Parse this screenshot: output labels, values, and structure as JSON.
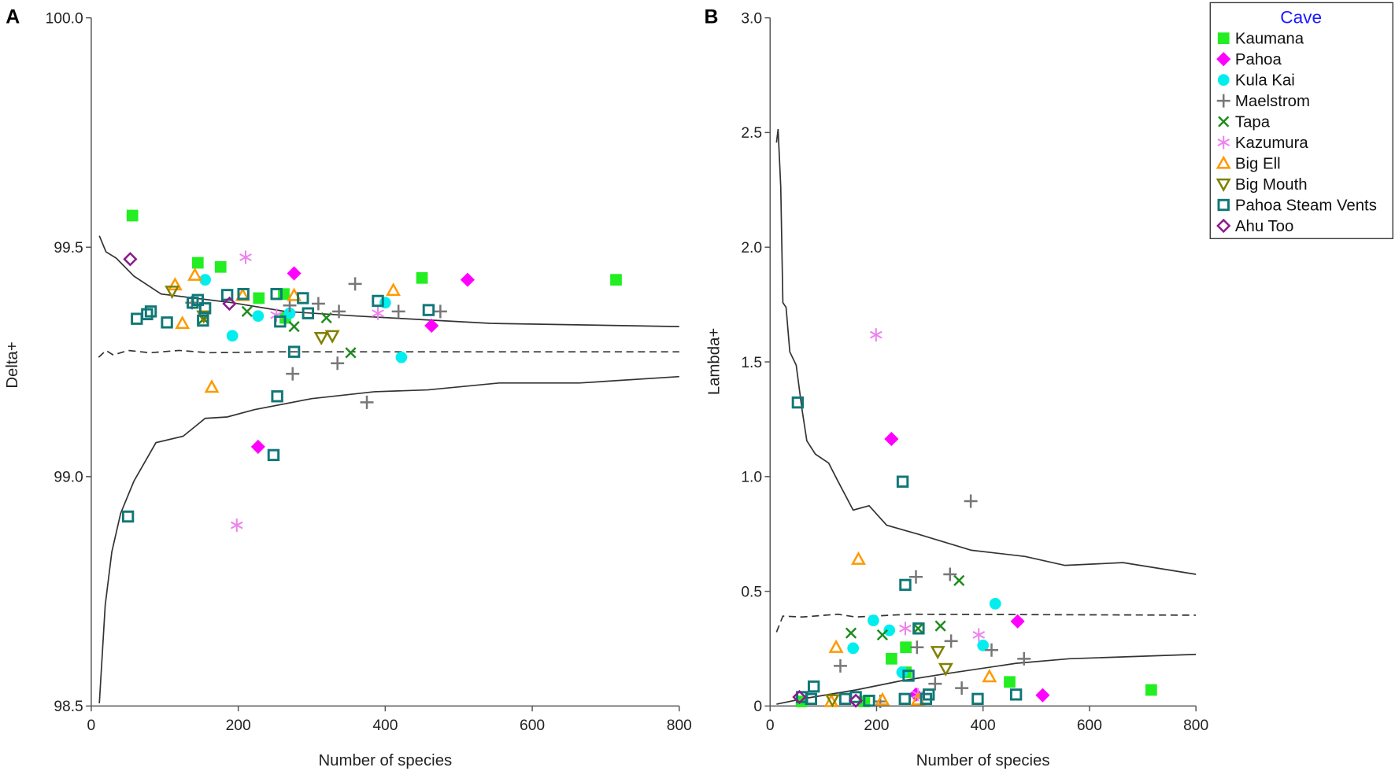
{
  "legend": {
    "title": "Cave",
    "title_color": "#1a1aff",
    "entries": [
      {
        "name": "Kaumana",
        "marker": "filled-square",
        "color": "#22ee22"
      },
      {
        "name": "Pahoa",
        "marker": "filled-diamond",
        "color": "#ff00ff"
      },
      {
        "name": "Kula Kai",
        "marker": "filled-circle",
        "color": "#00eeee"
      },
      {
        "name": "Maelstrom",
        "marker": "plus",
        "color": "#777777"
      },
      {
        "name": "Tapa",
        "marker": "cross",
        "color": "#1e8c1e"
      },
      {
        "name": "Kazumura",
        "marker": "asterisk",
        "color": "#ee82ee"
      },
      {
        "name": "Big Ell",
        "marker": "open-triangle-up",
        "color": "#ff9900"
      },
      {
        "name": "Big Mouth",
        "marker": "open-triangle-down",
        "color": "#808000"
      },
      {
        "name": "Pahoa Steam Vents",
        "marker": "open-square",
        "color": "#117777"
      },
      {
        "name": "Ahu Too",
        "marker": "open-diamond",
        "color": "#8b1a8b"
      }
    ]
  },
  "chart_data": [
    {
      "panel": "A",
      "type": "scatter",
      "xlabel": "Number of species",
      "ylabel": "Delta+",
      "xlim": [
        0,
        800
      ],
      "ylim": [
        98.5,
        100.0
      ],
      "xticks": [
        "0",
        "200",
        "400",
        "600",
        "800"
      ],
      "yticks": [
        "98.5",
        "99.0",
        "99.5",
        "100.0"
      ],
      "series": [
        {
          "name": "Kaumana",
          "points": [
            [
              56,
              99.569
            ],
            [
              145,
              99.466
            ],
            [
              176,
              99.457
            ],
            [
              228,
              99.389
            ],
            [
              262,
              99.398
            ],
            [
              264,
              99.346
            ],
            [
              450,
              99.433
            ],
            [
              714,
              99.429
            ]
          ]
        },
        {
          "name": "Pahoa",
          "points": [
            [
              276,
              99.443
            ],
            [
              512,
              99.429
            ],
            [
              463,
              99.329
            ],
            [
              227,
              99.065
            ]
          ]
        },
        {
          "name": "Kula Kai",
          "points": [
            [
              155,
              99.429
            ],
            [
              192,
              99.307
            ],
            [
              227,
              99.35
            ],
            [
              270,
              99.356
            ],
            [
              400,
              99.379
            ],
            [
              422,
              99.26
            ]
          ]
        },
        {
          "name": "Maelstrom",
          "points": [
            [
              137,
              99.379
            ],
            [
              270,
              99.373
            ],
            [
              309,
              99.377
            ],
            [
              337,
              99.36
            ],
            [
              359,
              99.42
            ],
            [
              418,
              99.36
            ],
            [
              475,
              99.36
            ],
            [
              274,
              99.224
            ],
            [
              335,
              99.247
            ],
            [
              375,
              99.162
            ]
          ]
        },
        {
          "name": "Tapa",
          "points": [
            [
              153,
              99.344
            ],
            [
              212,
              99.36
            ],
            [
              276,
              99.327
            ],
            [
              320,
              99.346
            ],
            [
              353,
              99.27
            ]
          ]
        },
        {
          "name": "Kazumura",
          "points": [
            [
              210,
              99.478
            ],
            [
              252,
              99.352
            ],
            [
              390,
              99.356
            ],
            [
              198,
              98.894
            ]
          ]
        },
        {
          "name": "Big Ell",
          "points": [
            [
              141,
              99.439
            ],
            [
              114,
              99.418
            ],
            [
              124,
              99.334
            ],
            [
              206,
              99.395
            ],
            [
              276,
              99.395
            ],
            [
              411,
              99.406
            ],
            [
              164,
              99.195
            ]
          ]
        },
        {
          "name": "Big Mouth",
          "points": [
            [
              110,
              99.404
            ],
            [
              153,
              99.35
            ],
            [
              313,
              99.303
            ],
            [
              328,
              99.307
            ]
          ]
        },
        {
          "name": "Pahoa Steam Vents",
          "points": [
            [
              50,
              98.913
            ],
            [
              62,
              99.344
            ],
            [
              76,
              99.354
            ],
            [
              81,
              99.36
            ],
            [
              103,
              99.336
            ],
            [
              138,
              99.379
            ],
            [
              145,
              99.385
            ],
            [
              155,
              99.367
            ],
            [
              152,
              99.34
            ],
            [
              185,
              99.396
            ],
            [
              207,
              99.398
            ],
            [
              252,
              99.398
            ],
            [
              257,
              99.338
            ],
            [
              288,
              99.389
            ],
            [
              295,
              99.356
            ],
            [
              276,
              99.272
            ],
            [
              253,
              99.175
            ],
            [
              248,
              99.047
            ],
            [
              390,
              99.383
            ],
            [
              459,
              99.363
            ]
          ]
        },
        {
          "name": "Ahu Too",
          "points": [
            [
              53,
              99.474
            ],
            [
              188,
              99.377
            ]
          ]
        }
      ],
      "lines": [
        {
          "name": "upper-limit",
          "style": "solid",
          "points": [
            [
              11,
              99.525
            ],
            [
              20,
              99.49
            ],
            [
              34,
              99.476
            ],
            [
              58,
              99.437
            ],
            [
              95,
              99.398
            ],
            [
              192,
              99.379
            ],
            [
              264,
              99.36
            ],
            [
              361,
              99.35
            ],
            [
              543,
              99.334
            ],
            [
              800,
              99.327
            ]
          ]
        },
        {
          "name": "mean",
          "style": "dashed",
          "points": [
            [
              10,
              99.26
            ],
            [
              20,
              99.275
            ],
            [
              30,
              99.265
            ],
            [
              50,
              99.275
            ],
            [
              80,
              99.27
            ],
            [
              120,
              99.275
            ],
            [
              160,
              99.27
            ],
            [
              250,
              99.272
            ],
            [
              400,
              99.272
            ],
            [
              800,
              99.272
            ]
          ]
        },
        {
          "name": "lower-limit",
          "style": "solid",
          "points": [
            [
              11,
              98.506
            ],
            [
              19,
              98.72
            ],
            [
              28,
              98.836
            ],
            [
              40,
              98.92
            ],
            [
              58,
              98.99
            ],
            [
              88,
              99.074
            ],
            [
              125,
              99.088
            ],
            [
              155,
              99.127
            ],
            [
              185,
              99.13
            ],
            [
              222,
              99.146
            ],
            [
              300,
              99.17
            ],
            [
              385,
              99.185
            ],
            [
              458,
              99.189
            ],
            [
              555,
              99.204
            ],
            [
              664,
              99.204
            ],
            [
              800,
              99.218
            ]
          ]
        }
      ]
    },
    {
      "panel": "B",
      "type": "scatter",
      "xlabel": "Number of species",
      "ylabel": "Lambda+",
      "xlim": [
        0,
        800
      ],
      "ylim": [
        0,
        3.0
      ],
      "xticks": [
        "0",
        "200",
        "400",
        "600",
        "800"
      ],
      "yticks": [
        "0",
        "0.5",
        "1.0",
        "1.5",
        "2.0",
        "2.5",
        "3.0"
      ],
      "series": [
        {
          "name": "Kaumana",
          "points": [
            [
              59,
              0.02
            ],
            [
              228,
              0.206
            ],
            [
              255,
              0.256
            ],
            [
              255,
              0.147
            ],
            [
              450,
              0.105
            ],
            [
              716,
              0.07
            ],
            [
              177,
              0.02
            ]
          ]
        },
        {
          "name": "Pahoa",
          "points": [
            [
              228,
              1.164
            ],
            [
              465,
              0.369
            ],
            [
              512,
              0.047
            ],
            [
              274,
              0.05
            ]
          ]
        },
        {
          "name": "Kula Kai",
          "points": [
            [
              156,
              0.252
            ],
            [
              194,
              0.373
            ],
            [
              224,
              0.33
            ],
            [
              248,
              0.147
            ],
            [
              400,
              0.264
            ],
            [
              423,
              0.446
            ]
          ]
        },
        {
          "name": "Maelstrom",
          "points": [
            [
              132,
              0.175
            ],
            [
              274,
              0.563
            ],
            [
              338,
              0.574
            ],
            [
              377,
              0.893
            ],
            [
              276,
              0.256
            ],
            [
              340,
              0.283
            ],
            [
              416,
              0.244
            ],
            [
              477,
              0.206
            ],
            [
              310,
              0.097
            ],
            [
              360,
              0.078
            ],
            [
              207,
              0.02
            ]
          ]
        },
        {
          "name": "Tapa",
          "points": [
            [
              152,
              0.318
            ],
            [
              211,
              0.31
            ],
            [
              278,
              0.338
            ],
            [
              320,
              0.349
            ],
            [
              355,
              0.547
            ]
          ]
        },
        {
          "name": "Kazumura",
          "points": [
            [
              199,
              1.618
            ],
            [
              254,
              0.338
            ],
            [
              392,
              0.31
            ],
            [
              278,
              0.05
            ]
          ]
        },
        {
          "name": "Big Ell",
          "points": [
            [
              166,
              0.64
            ],
            [
              124,
              0.256
            ],
            [
              412,
              0.128
            ],
            [
              115,
              0.02
            ],
            [
              211,
              0.027
            ],
            [
              278,
              0.027
            ]
          ]
        },
        {
          "name": "Big Mouth",
          "points": [
            [
              315,
              0.237
            ],
            [
              330,
              0.163
            ],
            [
              117,
              0.027
            ]
          ]
        },
        {
          "name": "Pahoa Steam Vents",
          "points": [
            [
              52,
              1.323
            ],
            [
              249,
              0.978
            ],
            [
              254,
              0.528
            ],
            [
              279,
              0.338
            ],
            [
              260,
              0.132
            ],
            [
              82,
              0.085
            ],
            [
              60,
              0.039
            ],
            [
              462,
              0.05
            ],
            [
              390,
              0.031
            ],
            [
              293,
              0.031
            ],
            [
              253,
              0.031
            ],
            [
              161,
              0.039
            ],
            [
              141,
              0.031
            ],
            [
              77,
              0.031
            ],
            [
              186,
              0.023
            ],
            [
              298,
              0.05
            ]
          ]
        },
        {
          "name": "Ahu Too",
          "points": [
            [
              55,
              0.039
            ],
            [
              161,
              0.023
            ]
          ]
        }
      ],
      "lines": [
        {
          "name": "upper-limit",
          "style": "solid",
          "points": [
            [
              12,
              2.456
            ],
            [
              15,
              2.515
            ],
            [
              20,
              2.262
            ],
            [
              24,
              1.758
            ],
            [
              30,
              1.738
            ],
            [
              37,
              1.544
            ],
            [
              49,
              1.486
            ],
            [
              60,
              1.292
            ],
            [
              69,
              1.156
            ],
            [
              85,
              1.098
            ],
            [
              110,
              1.059
            ],
            [
              127,
              0.982
            ],
            [
              156,
              0.854
            ],
            [
              186,
              0.873
            ],
            [
              219,
              0.788
            ],
            [
              278,
              0.749
            ],
            [
              378,
              0.679
            ],
            [
              479,
              0.652
            ],
            [
              554,
              0.613
            ],
            [
              663,
              0.625
            ],
            [
              800,
              0.574
            ]
          ]
        },
        {
          "name": "mean",
          "style": "dashed",
          "points": [
            [
              12,
              0.322
            ],
            [
              24,
              0.392
            ],
            [
              60,
              0.388
            ],
            [
              127,
              0.4
            ],
            [
              161,
              0.388
            ],
            [
              261,
              0.4
            ],
            [
              800,
              0.396
            ]
          ]
        },
        {
          "name": "lower-limit",
          "style": "solid",
          "points": [
            [
              12,
              0.008
            ],
            [
              60,
              0.031
            ],
            [
              161,
              0.07
            ],
            [
              244,
              0.109
            ],
            [
              328,
              0.14
            ],
            [
              462,
              0.186
            ],
            [
              562,
              0.206
            ],
            [
              800,
              0.225
            ]
          ]
        }
      ]
    }
  ]
}
